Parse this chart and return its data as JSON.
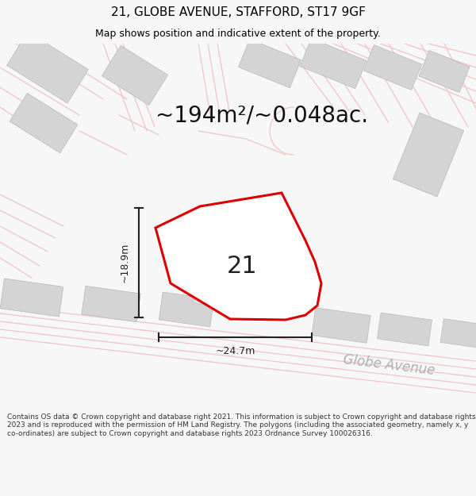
{
  "title": "21, GLOBE AVENUE, STAFFORD, ST17 9GF",
  "subtitle": "Map shows position and indicative extent of the property.",
  "area_text": "~194m²/~0.048ac.",
  "label_21": "21",
  "dim_height": "~18.9m",
  "dim_width": "~24.7m",
  "street_label": "Globe Avenue",
  "footer_text": "Contains OS data © Crown copyright and database right 2021. This information is subject to Crown copyright and database rights 2023 and is reproduced with the permission of HM Land Registry. The polygons (including the associated geometry, namely x, y co-ordinates) are subject to Crown copyright and database rights 2023 Ordnance Survey 100026316.",
  "bg_color": "#f7f7f7",
  "map_bg": "#ffffff",
  "road_color": "#f2c4c4",
  "building_color": "#d4d4d4",
  "plot_fill": "#ffffff",
  "plot_edge": "#dd0000",
  "dim_color": "#222222",
  "title_color": "#000000",
  "street_text_color": "#b0b0b0",
  "road_outline_color": "#e8b8b8",
  "title_fontsize": 11,
  "subtitle_fontsize": 9,
  "area_fontsize": 20,
  "label_fontsize": 22,
  "dim_fontsize": 9,
  "street_fontsize": 12,
  "footer_fontsize": 6.5
}
